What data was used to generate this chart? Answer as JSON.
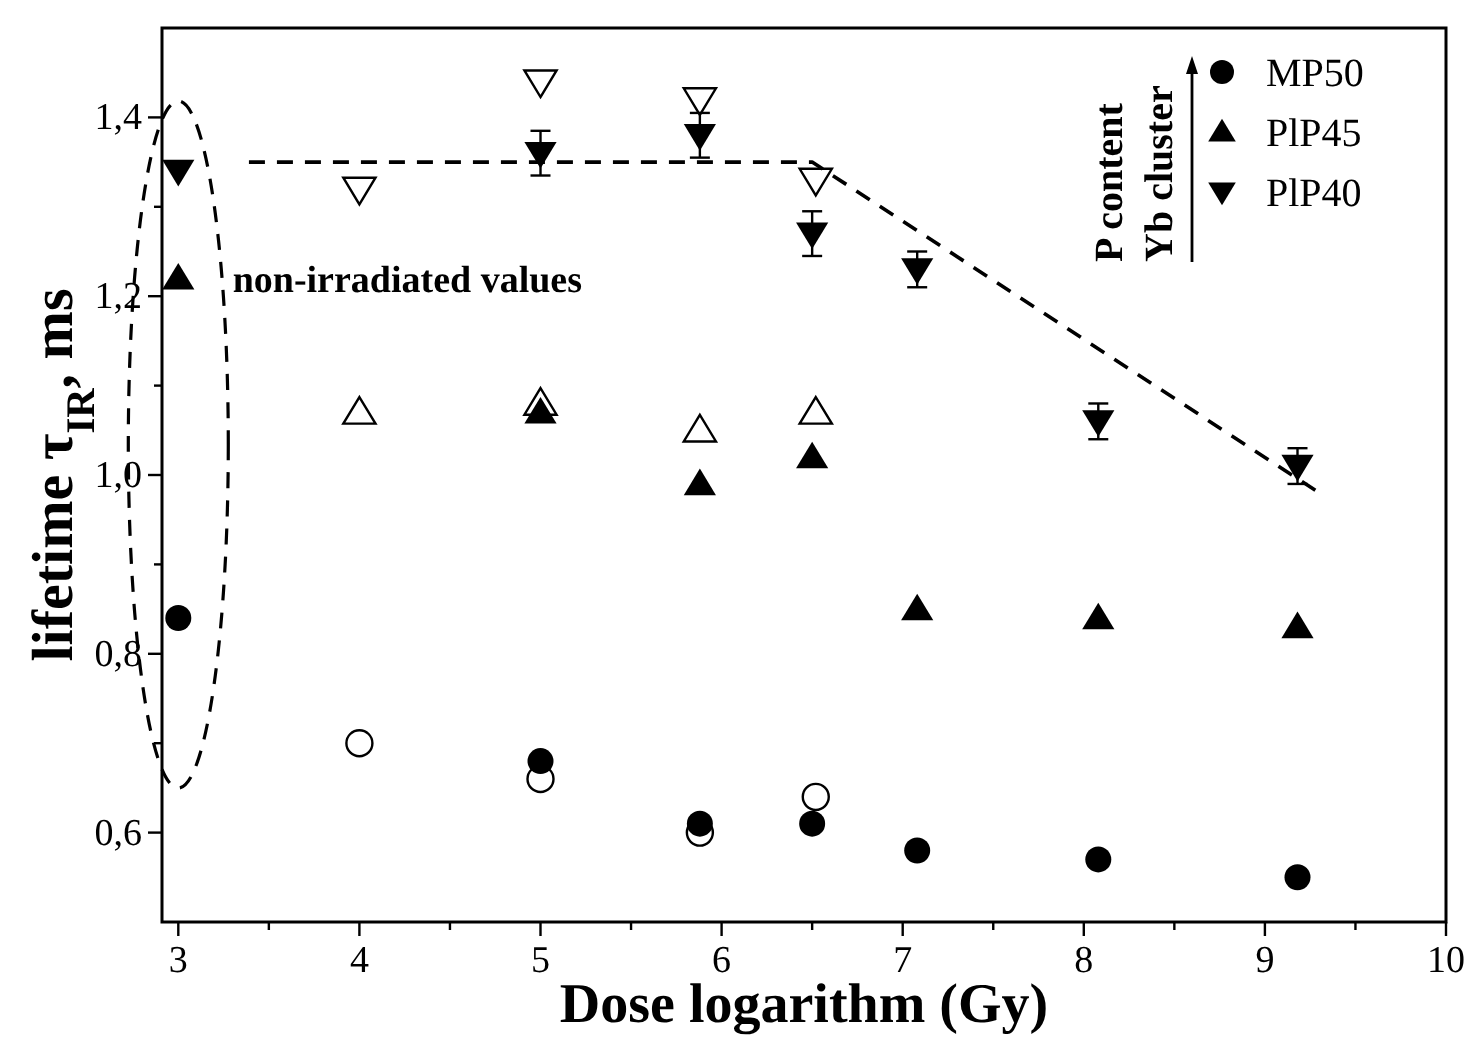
{
  "chart_data": {
    "type": "scatter",
    "xlabel": "Dose logarithm (Gy)",
    "ylabel": "lifetime τ$_{IR}$, ms",
    "xlim": [
      2.91,
      10
    ],
    "ylim": [
      0.5,
      1.5
    ],
    "xticks": [
      3,
      {
        "value": 3.5,
        "label": null
      },
      4,
      {
        "value": 4.5,
        "label": null
      },
      5,
      {
        "value": 5.5,
        "label": null
      },
      6,
      {
        "value": 6.5,
        "label": null
      },
      7,
      {
        "value": 7.5,
        "label": null
      },
      8,
      {
        "value": 8.5,
        "label": null
      },
      9,
      {
        "value": 9.5,
        "label": null
      },
      10
    ],
    "yticks": [
      {
        "value": 0.6,
        "label": "0,6"
      },
      {
        "value": 0.7,
        "label": null
      },
      {
        "value": 0.8,
        "label": "0,8"
      },
      {
        "value": 0.9,
        "label": null
      },
      {
        "value": 1.0,
        "label": "1,0"
      },
      {
        "value": 1.1,
        "label": null
      },
      {
        "value": 1.2,
        "label": "1,2"
      },
      {
        "value": 1.3,
        "label": null
      },
      {
        "value": 1.4,
        "label": "1,4"
      }
    ],
    "legend": "top right",
    "annotations": [
      "non-irradiated values",
      "P content",
      "Yb cluster"
    ],
    "series": [
      {
        "name": "MP50",
        "color": "#000000",
        "marker": "circle",
        "x": [
          3,
          5,
          5.88,
          6.5,
          7.08,
          8.08,
          9.18
        ],
        "values": [
          0.84,
          0.68,
          0.61,
          0.61,
          0.58,
          0.57,
          0.55
        ]
      },
      {
        "name": "PlP45",
        "color": "#000000",
        "marker": "triangle",
        "x": [
          3,
          5,
          5.88,
          6.5,
          7.08,
          8.08,
          9.18
        ],
        "values": [
          1.22,
          1.07,
          0.99,
          1.02,
          0.85,
          0.84,
          0.83
        ]
      },
      {
        "name": "PlP40",
        "color": "#000000",
        "marker": "triangle-down",
        "x": [
          3,
          5,
          5.88,
          6.5,
          7.08,
          8.08,
          9.18
        ],
        "values": [
          1.34,
          1.36,
          1.38,
          1.27,
          1.23,
          1.06,
          1.01
        ],
        "errors": [
          null,
          0.025,
          0.025,
          0.025,
          0.02,
          0.02,
          0.02
        ]
      },
      {
        "color": "#000000",
        "marker": "circle-open",
        "x": [
          4,
          5,
          5.88,
          6.52
        ],
        "values": [
          0.7,
          0.66,
          0.6,
          0.64
        ]
      },
      {
        "color": "#000000",
        "marker": "triangle-open",
        "x": [
          4,
          5,
          5.88,
          6.52
        ],
        "values": [
          1.07,
          1.08,
          1.05,
          1.07
        ]
      },
      {
        "color": "#000000",
        "marker": "triangle-down-open",
        "x": [
          4,
          5,
          5.88,
          6.52
        ],
        "values": [
          1.32,
          1.44,
          1.42,
          1.33
        ]
      },
      {
        "type": "line",
        "color": "#000000",
        "marker": "none",
        "line_style": "dashed",
        "x": [
          3.39,
          6.5,
          9.3
        ],
        "values": [
          1.35,
          1.35,
          0.98
        ]
      }
    ]
  }
}
